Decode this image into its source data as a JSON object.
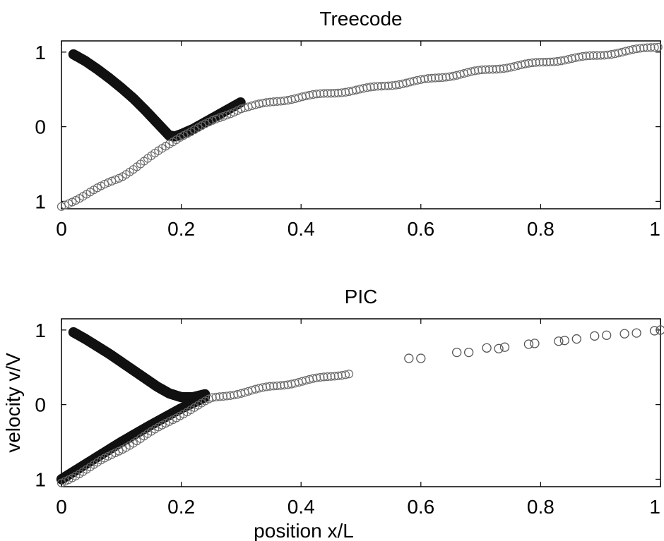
{
  "chart_data": [
    {
      "type": "scatter",
      "title": "Treecode",
      "xlabel": "",
      "ylabel": "",
      "xlim": [
        0,
        1
      ],
      "ylim": [
        -1.1,
        1.15
      ],
      "xticks": [
        "0",
        "0.2",
        "0.4",
        "0.6",
        "0.8",
        "1"
      ],
      "yticks": [
        "1",
        "0",
        "1"
      ],
      "grid": false,
      "series": [
        {
          "style": "dense",
          "x": [
            0.02,
            0.04,
            0.06,
            0.08,
            0.1,
            0.12,
            0.14,
            0.16,
            0.18,
            0.19,
            0.2,
            0.22,
            0.24,
            0.26,
            0.28,
            0.3
          ],
          "y": [
            0.97,
            0.88,
            0.77,
            0.65,
            0.52,
            0.38,
            0.22,
            0.05,
            -0.12,
            -0.13,
            -0.1,
            -0.03,
            0.06,
            0.15,
            0.24,
            0.33
          ]
        },
        {
          "style": "sparse",
          "x": [
            0.0,
            0.05,
            0.1,
            0.15,
            0.2,
            0.3,
            0.4,
            0.5,
            0.6,
            0.7,
            0.8,
            0.9,
            1.0
          ],
          "y": [
            -1.07,
            -0.87,
            -0.67,
            -0.4,
            -0.12,
            0.25,
            0.4,
            0.5,
            0.62,
            0.75,
            0.86,
            0.96,
            1.08
          ]
        }
      ]
    },
    {
      "type": "scatter",
      "title": "PIC",
      "xlabel": "position x/L",
      "ylabel": "velocity v/V",
      "xlim": [
        0,
        1
      ],
      "ylim": [
        -1.1,
        1.15
      ],
      "xticks": [
        "0",
        "0.2",
        "0.4",
        "0.6",
        "0.8",
        "1"
      ],
      "yticks": [
        "1",
        "0",
        "1"
      ],
      "grid": false,
      "series": [
        {
          "style": "dense",
          "x": [
            0.02,
            0.04,
            0.06,
            0.08,
            0.1,
            0.12,
            0.14,
            0.16,
            0.18,
            0.2,
            0.22,
            0.24
          ],
          "y": [
            0.97,
            0.88,
            0.78,
            0.68,
            0.57,
            0.46,
            0.35,
            0.24,
            0.15,
            0.1,
            0.1,
            0.14
          ]
        },
        {
          "style": "dense",
          "x": [
            0.0,
            0.05,
            0.1,
            0.15,
            0.2,
            0.24
          ],
          "y": [
            -1.0,
            -0.75,
            -0.5,
            -0.27,
            -0.05,
            0.1
          ]
        },
        {
          "style": "sparse",
          "x": [
            0.0,
            0.05,
            0.1,
            0.15,
            0.2,
            0.25,
            0.3,
            0.35,
            0.4,
            0.45,
            0.48
          ],
          "y": [
            -1.05,
            -0.83,
            -0.6,
            -0.37,
            -0.13,
            0.08,
            0.16,
            0.24,
            0.31,
            0.38,
            0.42
          ]
        },
        {
          "style": "sparse",
          "x": [
            0.58,
            0.6,
            0.66,
            0.68,
            0.71,
            0.73,
            0.74,
            0.78,
            0.79,
            0.83,
            0.84,
            0.86,
            0.89,
            0.91,
            0.94,
            0.96,
            0.99,
            1.0
          ],
          "y": [
            0.62,
            0.62,
            0.7,
            0.7,
            0.76,
            0.75,
            0.77,
            0.81,
            0.82,
            0.85,
            0.86,
            0.88,
            0.92,
            0.93,
            0.95,
            0.96,
            0.99,
            1.0
          ]
        }
      ]
    }
  ]
}
